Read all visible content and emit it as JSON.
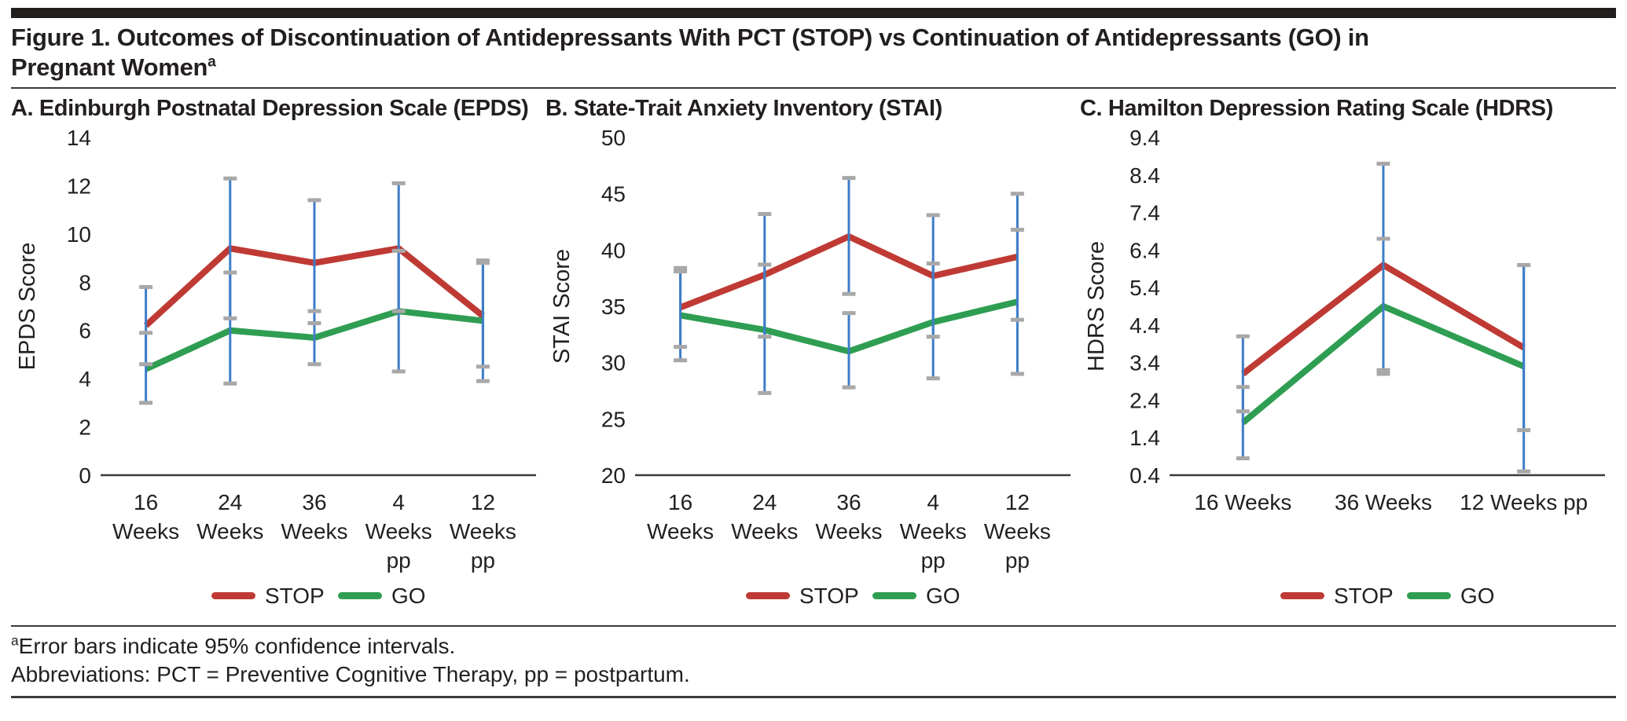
{
  "figure": {
    "title_line1": "Figure 1. Outcomes of Discontinuation of Antidepressants With PCT (STOP) vs Continuation of Antidepressants (GO) in",
    "title_line2": "Pregnant Women",
    "title_superscript": "a"
  },
  "footnotes": {
    "note_superscript": "a",
    "note_text": "Error bars indicate 95% confidence intervals.",
    "abbreviations": "Abbreviations: PCT = Preventive Cognitive Therapy, pp = postpartum."
  },
  "colors": {
    "stop_line": "#bf3a34",
    "go_line": "#2f9e52",
    "error_bar": "#3e7dc8",
    "error_cap": "#a8a8a8",
    "axis": "#3d3a39",
    "text": "#231f20"
  },
  "chart_data": [
    {
      "panel": "A",
      "type": "line",
      "title": "A. Edinburgh Postnatal Depression Scale (EPDS)",
      "ylabel": "EPDS Score",
      "ylim": [
        0,
        14
      ],
      "yticks": [
        0,
        2,
        4,
        6,
        8,
        10,
        12,
        14
      ],
      "ytick_labels": [
        "0",
        "2",
        "4",
        "6",
        "8",
        "10",
        "12",
        "14"
      ],
      "grid": false,
      "legend_position": "bottom",
      "error_bars": "95% confidence intervals",
      "categories": [
        [
          "16",
          "Weeks"
        ],
        [
          "24",
          "Weeks"
        ],
        [
          "36",
          "Weeks"
        ],
        [
          "4",
          "Weeks",
          "pp"
        ],
        [
          "12",
          "Weeks",
          "pp"
        ]
      ],
      "series": [
        {
          "name": "STOP",
          "color": "#bf3a34",
          "values": [
            6.2,
            9.4,
            8.8,
            9.4,
            6.6
          ],
          "ci_low": [
            4.6,
            6.5,
            6.3,
            6.8,
            4.5
          ],
          "ci_high": [
            7.8,
            12.3,
            11.4,
            12.1,
            8.9
          ]
        },
        {
          "name": "GO",
          "color": "#2f9e52",
          "values": [
            4.4,
            6.0,
            5.7,
            6.8,
            6.4
          ],
          "ci_low": [
            3.0,
            3.8,
            4.6,
            4.3,
            3.9
          ],
          "ci_high": [
            5.9,
            8.4,
            6.8,
            9.3,
            8.8
          ]
        }
      ]
    },
    {
      "panel": "B",
      "type": "line",
      "title": "B. State-Trait Anxiety Inventory (STAI)",
      "ylabel": "STAI Score",
      "ylim": [
        20,
        50
      ],
      "yticks": [
        20,
        25,
        30,
        35,
        40,
        45,
        50
      ],
      "ytick_labels": [
        "20",
        "25",
        "30",
        "35",
        "40",
        "45",
        "50"
      ],
      "grid": false,
      "legend_position": "bottom",
      "error_bars": "95% confidence intervals",
      "categories": [
        [
          "16",
          "Weeks"
        ],
        [
          "24",
          "Weeks"
        ],
        [
          "36",
          "Weeks"
        ],
        [
          "4",
          "Weeks",
          "pp"
        ],
        [
          "12",
          "Weeks",
          "pp"
        ]
      ],
      "series": [
        {
          "name": "STOP",
          "color": "#bf3a34",
          "values": [
            34.9,
            37.8,
            41.2,
            37.7,
            39.4
          ],
          "ci_low": [
            31.4,
            32.3,
            36.1,
            32.3,
            33.8
          ],
          "ci_high": [
            38.4,
            43.2,
            46.4,
            43.1,
            45.0
          ]
        },
        {
          "name": "GO",
          "color": "#2f9e52",
          "values": [
            34.2,
            32.9,
            31.0,
            33.6,
            35.4
          ],
          "ci_low": [
            30.2,
            27.3,
            27.8,
            28.6,
            29.0
          ],
          "ci_high": [
            38.1,
            38.7,
            34.4,
            38.8,
            41.8
          ]
        }
      ]
    },
    {
      "panel": "C",
      "type": "line",
      "title": "C. Hamilton Depression Rating Scale (HDRS)",
      "ylabel": "HDRS Score",
      "ylim": [
        0.4,
        9.4
      ],
      "yticks": [
        0.4,
        1.4,
        2.4,
        3.4,
        4.4,
        5.4,
        6.4,
        7.4,
        8.4,
        9.4
      ],
      "ytick_labels": [
        "0.4",
        "1.4",
        "2.4",
        "3.4",
        "4.4",
        "5.4",
        "6.4",
        "7.4",
        "8.4",
        "9.4"
      ],
      "grid": false,
      "legend_position": "bottom",
      "error_bars": "95% confidence intervals",
      "categories": [
        [
          "16 Weeks"
        ],
        [
          "36 Weeks"
        ],
        [
          "12 Weeks pp"
        ]
      ],
      "series": [
        {
          "name": "STOP",
          "color": "#bf3a34",
          "values": [
            3.1,
            6.0,
            3.8
          ],
          "ci_low": [
            2.1,
            3.2,
            1.6
          ],
          "ci_high": [
            4.1,
            8.7,
            6.0
          ]
        },
        {
          "name": "GO",
          "color": "#2f9e52",
          "values": [
            1.8,
            4.9,
            3.3
          ],
          "ci_low": [
            0.85,
            3.1,
            0.5
          ],
          "ci_high": [
            2.75,
            6.7,
            6.0
          ]
        }
      ]
    }
  ]
}
